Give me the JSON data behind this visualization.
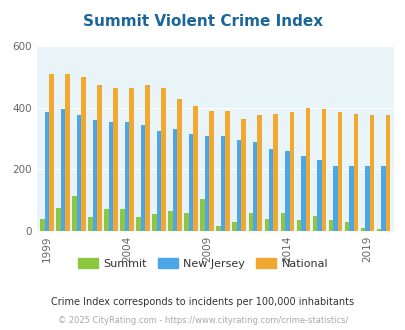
{
  "title": "Summit Violent Crime Index",
  "title_color": "#1a6699",
  "years": [
    1999,
    2000,
    2001,
    2002,
    2003,
    2004,
    2005,
    2006,
    2007,
    2008,
    2009,
    2010,
    2011,
    2012,
    2013,
    2014,
    2015,
    2016,
    2017,
    2018,
    2019,
    2020
  ],
  "summit": [
    40,
    75,
    115,
    45,
    70,
    70,
    45,
    55,
    65,
    60,
    105,
    15,
    30,
    60,
    40,
    60,
    35,
    50,
    35,
    30,
    10,
    5
  ],
  "new_jersey": [
    385,
    395,
    375,
    360,
    355,
    355,
    345,
    325,
    330,
    315,
    310,
    310,
    295,
    290,
    265,
    260,
    245,
    230,
    210,
    210,
    210,
    210
  ],
  "national": [
    510,
    510,
    500,
    475,
    465,
    465,
    475,
    465,
    430,
    405,
    390,
    390,
    365,
    375,
    380,
    385,
    400,
    395,
    385,
    380,
    375,
    375
  ],
  "ylim": [
    0,
    600
  ],
  "yticks": [
    0,
    200,
    400,
    600
  ],
  "bar_colors": {
    "summit": "#8dc63f",
    "new_jersey": "#4da6e8",
    "national": "#f0a830"
  },
  "bg_color": "#e8f4f8",
  "fig_bg": "#ffffff",
  "xlabel_ticks": [
    1999,
    2004,
    2009,
    2014,
    2019
  ],
  "footnote": "Crime Index corresponds to incidents per 100,000 inhabitants",
  "footnote2": "© 2025 CityRating.com - https://www.cityrating.com/crime-statistics/",
  "footnote_color": "#333333",
  "footnote2_color": "#aaaaaa",
  "legend_labels": [
    "Summit",
    "New Jersey",
    "National"
  ],
  "bar_width": 0.28
}
